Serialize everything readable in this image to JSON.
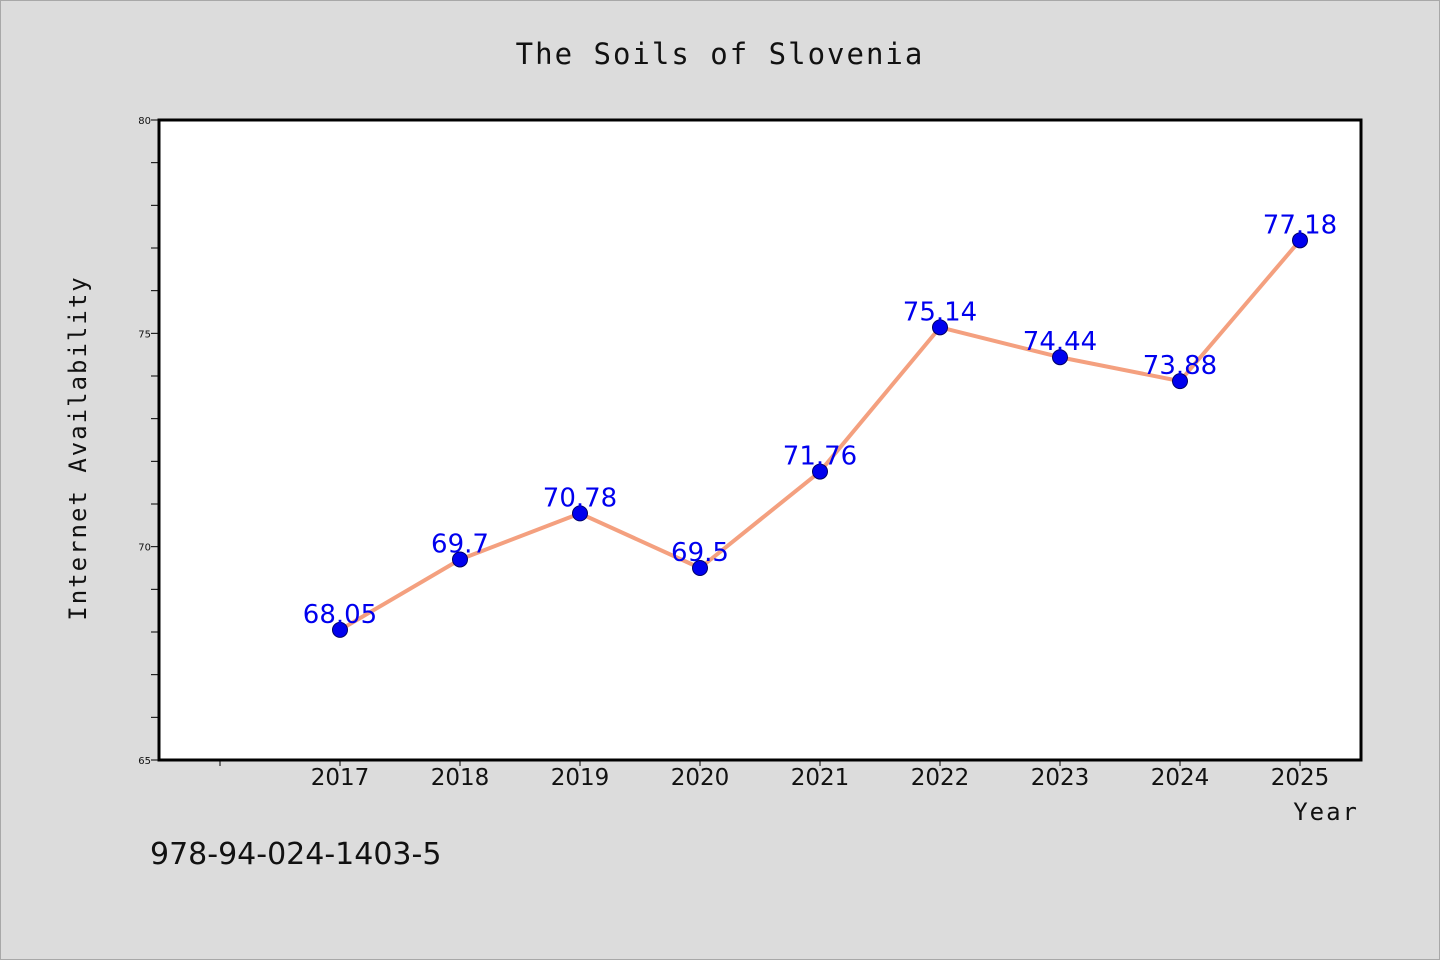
{
  "chart_data": {
    "type": "line",
    "title": "The Soils of Slovenia",
    "xlabel": "Year",
    "ylabel": "Internet Availability",
    "categories": [
      "2017",
      "2018",
      "2019",
      "2020",
      "2021",
      "2022",
      "2023",
      "2024",
      "2025"
    ],
    "values": [
      68.05,
      69.7,
      70.78,
      69.5,
      71.76,
      75.14,
      74.44,
      73.88,
      77.18
    ],
    "value_labels": [
      "68.05",
      "69.7",
      "70.78",
      "69.5",
      "71.76",
      "75.14",
      "74.44",
      "73.88",
      "77.18"
    ],
    "ylim": [
      65,
      80
    ],
    "y_ticks": [
      65,
      70,
      75,
      80
    ],
    "grid": false,
    "colors": {
      "line": "#f4a07f",
      "marker": "#0000ee",
      "marker_edge": "#000066",
      "label": "#0000ee",
      "plot_background": "#ffffff",
      "figure_background": "#dcdcdc"
    }
  },
  "footer": {
    "isbn": "978-94-024-1403-5"
  }
}
